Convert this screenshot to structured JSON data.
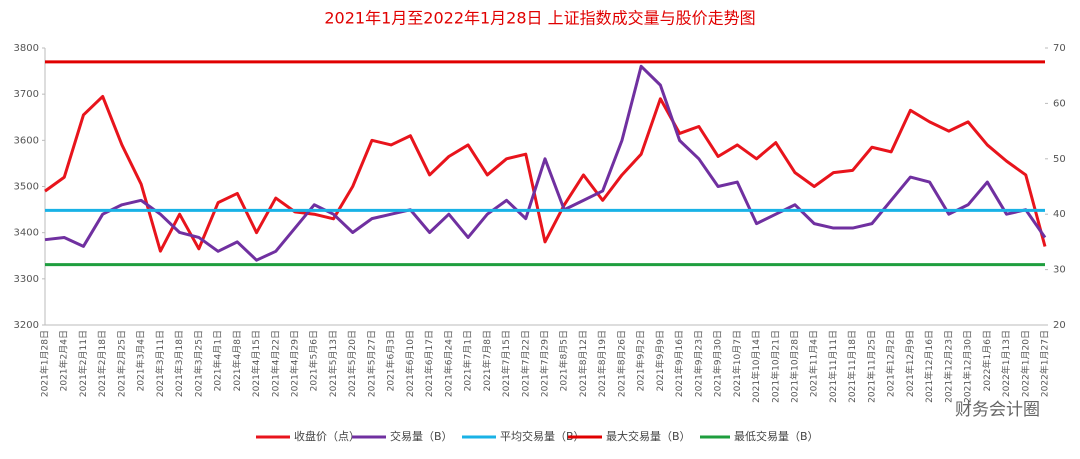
{
  "chart_data": {
    "type": "line",
    "title": "2021年1月至2022年1月28日  上证指数成交量与股价走势图",
    "watermark": "财务会计圈",
    "categories": [
      "2021年1月28日",
      "2021年2月4日",
      "2021年2月11日",
      "2021年2月18日",
      "2021年2月25日",
      "2021年3月4日",
      "2021年3月11日",
      "2021年3月18日",
      "2021年3月25日",
      "2021年4月1日",
      "2021年4月8日",
      "2021年4月15日",
      "2021年4月22日",
      "2021年4月29日",
      "2021年5月6日",
      "2021年5月13日",
      "2021年5月20日",
      "2021年5月27日",
      "2021年6月3日",
      "2021年6月10日",
      "2021年6月17日",
      "2021年6月24日",
      "2021年7月1日",
      "2021年7月8日",
      "2021年7月15日",
      "2021年7月22日",
      "2021年7月29日",
      "2021年8月5日",
      "2021年8月12日",
      "2021年8月19日",
      "2021年8月26日",
      "2021年9月2日",
      "2021年9月9日",
      "2021年9月16日",
      "2021年9月23日",
      "2021年9月30日",
      "2021年10月7日",
      "2021年10月14日",
      "2021年10月21日",
      "2021年10月28日",
      "2021年11月4日",
      "2021年11月11日",
      "2021年11月18日",
      "2021年11月25日",
      "2021年12月2日",
      "2021年12月9日",
      "2021年12月16日",
      "2021年12月23日",
      "2021年12月30日",
      "2022年1月6日",
      "2022年1月13日",
      "2022年1月20日",
      "2022年1月27日"
    ],
    "ylim": [
      3200,
      3800
    ],
    "yticks": [
      3200,
      3300,
      3400,
      3500,
      3600,
      3700,
      3800
    ],
    "y2lim": [
      20,
      70
    ],
    "y2ticks": [
      20,
      30,
      40,
      50,
      60,
      70
    ],
    "grid": false,
    "legend": "bottom",
    "series": [
      {
        "name": "收盘价（点）",
        "color": "#e8141c",
        "axis": "y",
        "values": [
          3490,
          3520,
          3655,
          3695,
          3590,
          3505,
          3360,
          3440,
          3365,
          3465,
          3485,
          3400,
          3475,
          3445,
          3440,
          3430,
          3500,
          3600,
          3590,
          3610,
          3525,
          3565,
          3590,
          3525,
          3560,
          3570,
          3380,
          3460,
          3525,
          3470,
          3525,
          3570,
          3690,
          3615,
          3630,
          3565,
          3590,
          3560,
          3595,
          3530,
          3500,
          3530,
          3535,
          3585,
          3575,
          3665,
          3640,
          3620,
          3640,
          3590,
          3555,
          3525,
          3370
        ]
      },
      {
        "name": "交易量（B）",
        "color": "#7030a0",
        "axis": "y2",
        "values": [
          35.4,
          35.8,
          34.2,
          40,
          41.7,
          42.5,
          40,
          36.7,
          35.8,
          33.3,
          35,
          31.7,
          33.3,
          37.5,
          41.7,
          40,
          36.7,
          39.2,
          40,
          40.8,
          36.7,
          40,
          35.8,
          40,
          42.5,
          39.2,
          50,
          40.8,
          42.5,
          44.2,
          53.3,
          66.7,
          63.3,
          53.3,
          50,
          45,
          45.8,
          38.3,
          40,
          41.7,
          38.3,
          37.5,
          37.5,
          38.3,
          42.5,
          46.7,
          45.8,
          40,
          41.7,
          45.8,
          40,
          40.8,
          35.8
        ]
      },
      {
        "name": "平均交易量（B）",
        "color": "#19b2e6",
        "axis": "y2",
        "values": [
          40.7,
          40.7,
          40.7,
          40.7,
          40.7,
          40.7,
          40.7,
          40.7,
          40.7,
          40.7,
          40.7,
          40.7,
          40.7,
          40.7,
          40.7,
          40.7,
          40.7,
          40.7,
          40.7,
          40.7,
          40.7,
          40.7,
          40.7,
          40.7,
          40.7,
          40.7,
          40.7,
          40.7,
          40.7,
          40.7,
          40.7,
          40.7,
          40.7,
          40.7,
          40.7,
          40.7,
          40.7,
          40.7,
          40.7,
          40.7,
          40.7,
          40.7,
          40.7,
          40.7,
          40.7,
          40.7,
          40.7,
          40.7,
          40.7,
          40.7,
          40.7,
          40.7,
          40.7
        ]
      },
      {
        "name": "最大交易量（B）",
        "color": "#e00000",
        "axis": "y2",
        "values": [
          67.5,
          67.5,
          67.5,
          67.5,
          67.5,
          67.5,
          67.5,
          67.5,
          67.5,
          67.5,
          67.5,
          67.5,
          67.5,
          67.5,
          67.5,
          67.5,
          67.5,
          67.5,
          67.5,
          67.5,
          67.5,
          67.5,
          67.5,
          67.5,
          67.5,
          67.5,
          67.5,
          67.5,
          67.5,
          67.5,
          67.5,
          67.5,
          67.5,
          67.5,
          67.5,
          67.5,
          67.5,
          67.5,
          67.5,
          67.5,
          67.5,
          67.5,
          67.5,
          67.5,
          67.5,
          67.5,
          67.5,
          67.5,
          67.5,
          67.5,
          67.5,
          67.5,
          67.5
        ]
      },
      {
        "name": "最低交易量（B）",
        "color": "#1e9e3e",
        "axis": "y2",
        "values": [
          30.9,
          30.9,
          30.9,
          30.9,
          30.9,
          30.9,
          30.9,
          30.9,
          30.9,
          30.9,
          30.9,
          30.9,
          30.9,
          30.9,
          30.9,
          30.9,
          30.9,
          30.9,
          30.9,
          30.9,
          30.9,
          30.9,
          30.9,
          30.9,
          30.9,
          30.9,
          30.9,
          30.9,
          30.9,
          30.9,
          30.9,
          30.9,
          30.9,
          30.9,
          30.9,
          30.9,
          30.9,
          30.9,
          30.9,
          30.9,
          30.9,
          30.9,
          30.9,
          30.9,
          30.9,
          30.9,
          30.9,
          30.9,
          30.9,
          30.9,
          30.9,
          30.9,
          30.9
        ]
      }
    ]
  }
}
